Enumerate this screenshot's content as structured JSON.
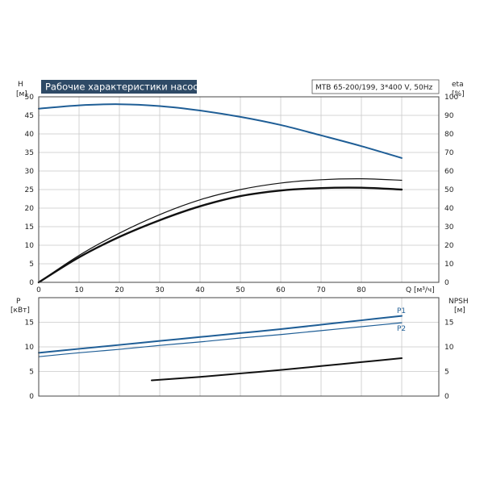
{
  "header": {
    "title": "Рабочие характеристики насоса",
    "model": "MTB 65-200/199, 3*400 V, 50Hz"
  },
  "colors": {
    "blue": "#1f5e96",
    "black": "#111111",
    "title_bg": "#2e4a66"
  },
  "chart_data": [
    {
      "type": "line",
      "title": "Рабочие характеристики насоса",
      "xlabel": "Q [м³/ч]",
      "ylabel_left": "H",
      "ylabel_left_unit": "[м]",
      "ylabel_right": "eta",
      "ylabel_right_unit": "[%]",
      "xlim": [
        0,
        90
      ],
      "ylim_left": [
        0,
        50
      ],
      "ylim_right": [
        0,
        100
      ],
      "xticks": [
        "0",
        "10",
        "20",
        "30",
        "40",
        "50",
        "60",
        "70",
        "80"
      ],
      "yticks_left": [
        "0",
        "5",
        "10",
        "15",
        "20",
        "25",
        "30",
        "35",
        "40",
        "45",
        "50"
      ],
      "yticks_right": [
        "0",
        "10",
        "20",
        "30",
        "40",
        "50",
        "60",
        "70",
        "80",
        "90",
        "100"
      ],
      "grid": true,
      "series": [
        {
          "axis": "left",
          "color": "#1f5e96",
          "x": [
            0,
            10,
            20,
            30,
            40,
            50,
            60,
            70,
            80,
            90
          ],
          "values": [
            46.8,
            47.7,
            48.0,
            47.5,
            46.3,
            44.6,
            42.4,
            39.6,
            36.7,
            33.5
          ]
        },
        {
          "axis": "right",
          "color": "#111111",
          "x": [
            0,
            10,
            20,
            30,
            40,
            50,
            60,
            70,
            80,
            90
          ],
          "values": [
            0,
            14.5,
            26.5,
            36.5,
            44.5,
            50,
            53.5,
            55.3,
            55.8,
            55
          ]
        },
        {
          "axis": "right",
          "color": "#111111",
          "x": [
            0,
            10,
            20,
            30,
            40,
            50,
            60,
            70,
            80,
            90
          ],
          "values": [
            0,
            13.5,
            24.5,
            33.5,
            41,
            46.5,
            49.5,
            50.8,
            51,
            50
          ]
        }
      ]
    },
    {
      "type": "line",
      "xlabel": "",
      "ylabel_left": "P",
      "ylabel_left_unit": "[кВт]",
      "ylabel_right": "NPSH",
      "ylabel_right_unit": "[м]",
      "xlim": [
        0,
        90
      ],
      "ylim_left": [
        0,
        20
      ],
      "ylim_right": [
        0,
        20
      ],
      "yticks_left": [
        "0",
        "5",
        "10",
        "15"
      ],
      "yticks_right": [
        "0",
        "5",
        "10",
        "15"
      ],
      "grid": true,
      "series": [
        {
          "name": "P1",
          "axis": "left",
          "color": "#1f5e96",
          "x": [
            0,
            10,
            20,
            30,
            40,
            50,
            60,
            70,
            80,
            90
          ],
          "values": [
            8.8,
            9.6,
            10.4,
            11.2,
            12.0,
            12.8,
            13.6,
            14.5,
            15.4,
            16.3
          ]
        },
        {
          "name": "P2",
          "axis": "left",
          "color": "#1f5e96",
          "x": [
            0,
            10,
            20,
            30,
            40,
            50,
            60,
            70,
            80,
            90
          ],
          "values": [
            8.0,
            8.8,
            9.5,
            10.3,
            11.0,
            11.8,
            12.5,
            13.3,
            14.1,
            14.9
          ]
        },
        {
          "axis": "right",
          "color": "#111111",
          "x": [
            28,
            40,
            50,
            60,
            70,
            80,
            90
          ],
          "values": [
            3.2,
            3.9,
            4.6,
            5.3,
            6.1,
            6.9,
            7.7
          ]
        }
      ]
    }
  ]
}
